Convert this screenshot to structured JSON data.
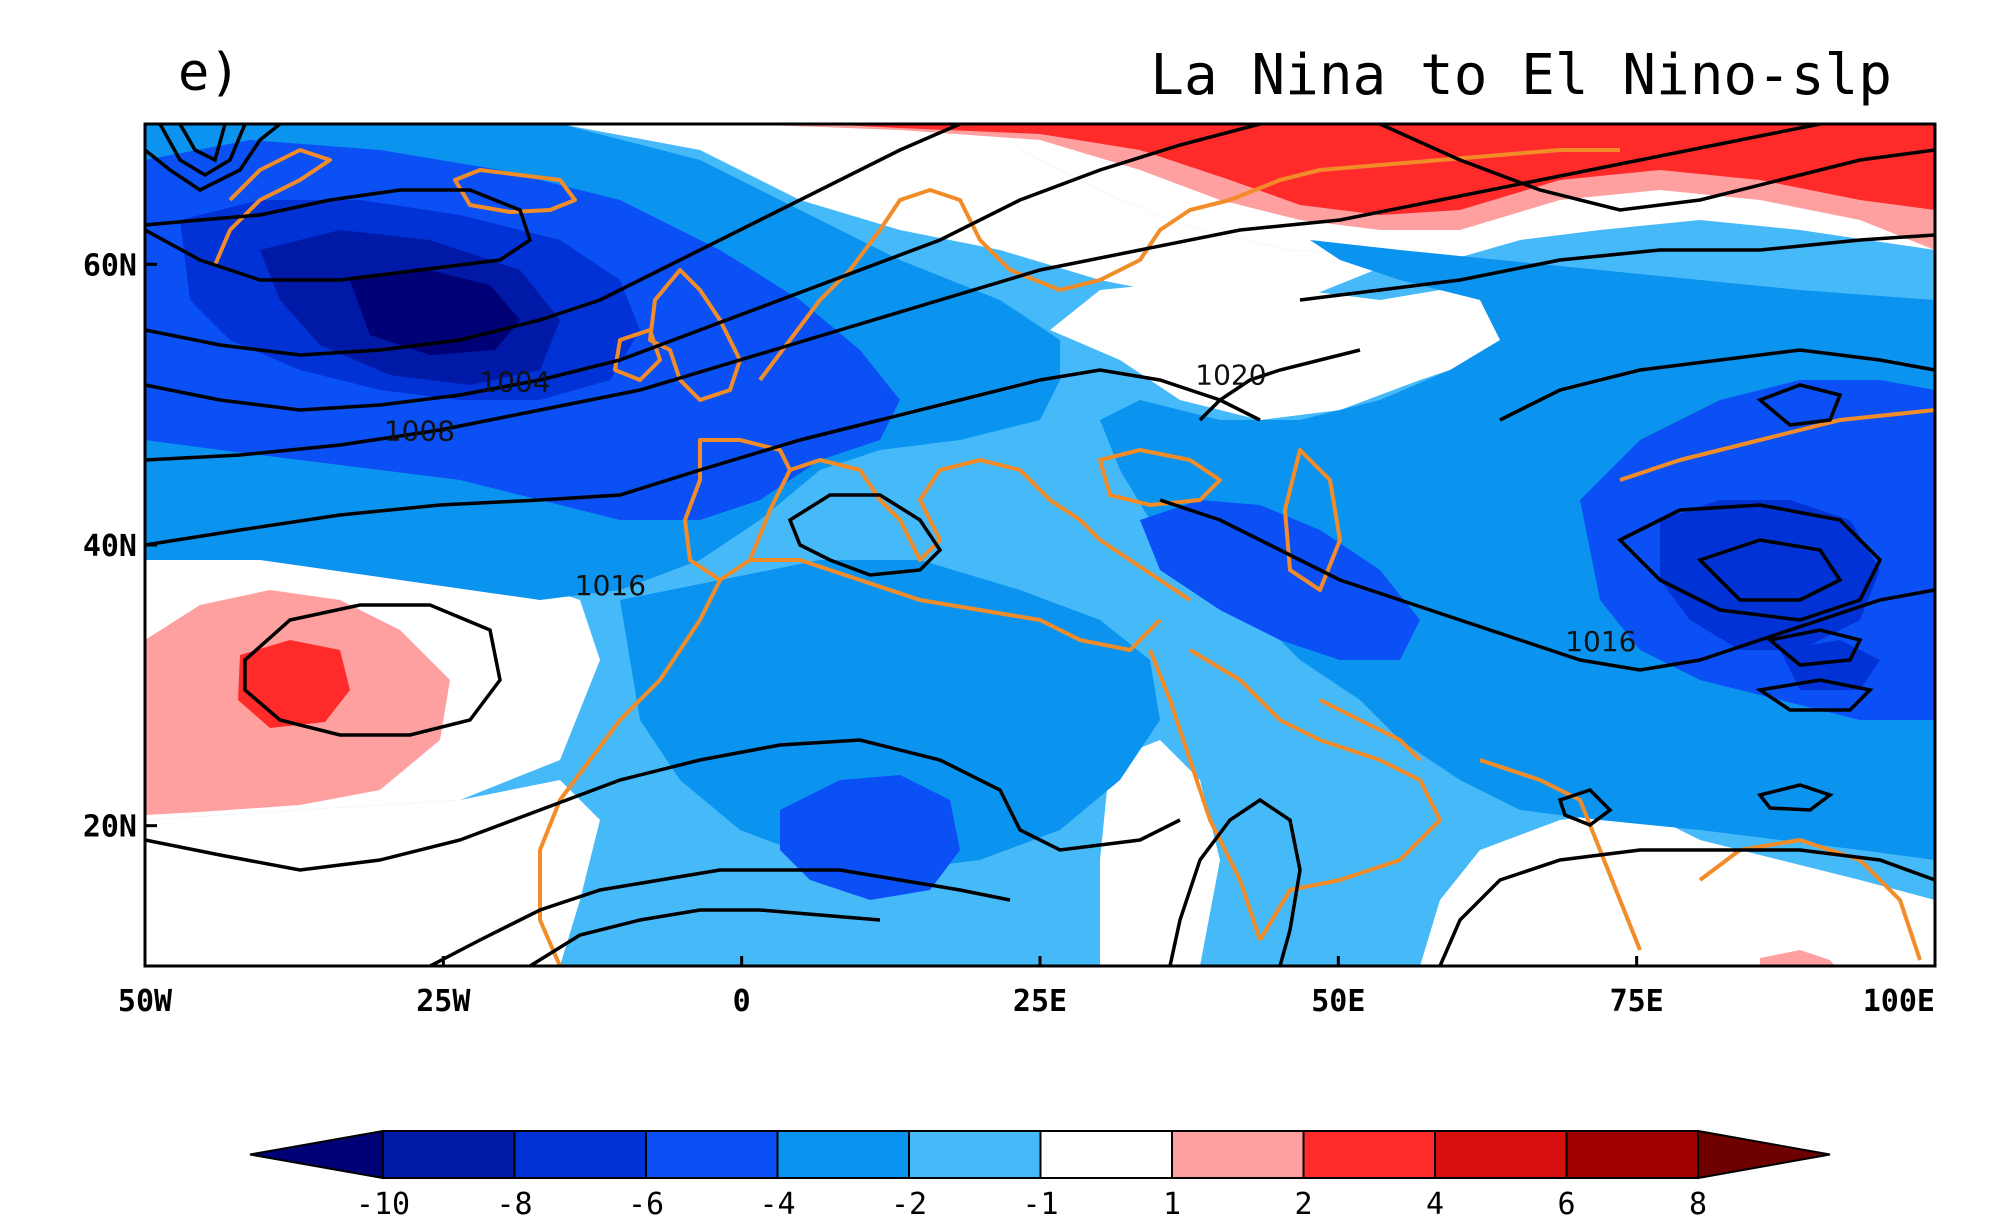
{
  "panel_label": "e)",
  "title": "La Nina to El Nino-slp",
  "map": {
    "lon_range": [
      -50,
      100
    ],
    "lat_range": [
      10,
      70
    ],
    "x_ticks": [
      {
        "lon": -50,
        "label": "50W"
      },
      {
        "lon": -25,
        "label": "25W"
      },
      {
        "lon": 0,
        "label": "0"
      },
      {
        "lon": 25,
        "label": "25E"
      },
      {
        "lon": 50,
        "label": "50E"
      },
      {
        "lon": 75,
        "label": "75E"
      },
      {
        "lon": 100,
        "label": "100E"
      }
    ],
    "y_ticks": [
      {
        "lat": 60,
        "label": "60N"
      },
      {
        "lat": 40,
        "label": "40N"
      },
      {
        "lat": 20,
        "label": "20N"
      }
    ],
    "contour_labels": [
      {
        "lon": -19,
        "lat": 51.5,
        "label": "1004"
      },
      {
        "lon": -27,
        "lat": 48,
        "label": "1008"
      },
      {
        "lon": -11,
        "lat": 37,
        "label": "1016"
      },
      {
        "lon": 41,
        "lat": 52,
        "label": "1020"
      },
      {
        "lon": 72,
        "lat": 33,
        "label": "1016"
      }
    ],
    "colors": {
      "coastline": "#f28c28",
      "contour": "#000000"
    }
  },
  "colorbar": {
    "levels": [
      "-10",
      "-8",
      "-6",
      "-4",
      "-2",
      "-1",
      "1",
      "2",
      "4",
      "6",
      "8"
    ],
    "colors": [
      "#000077",
      "#0019a6",
      "#0032d6",
      "#0a50f5",
      "#0a94f0",
      "#46b9f8",
      "#ffffff",
      "#ffa0a0",
      "#ff2a2a",
      "#d90f0f",
      "#a00000",
      "#6e0000"
    ]
  }
}
